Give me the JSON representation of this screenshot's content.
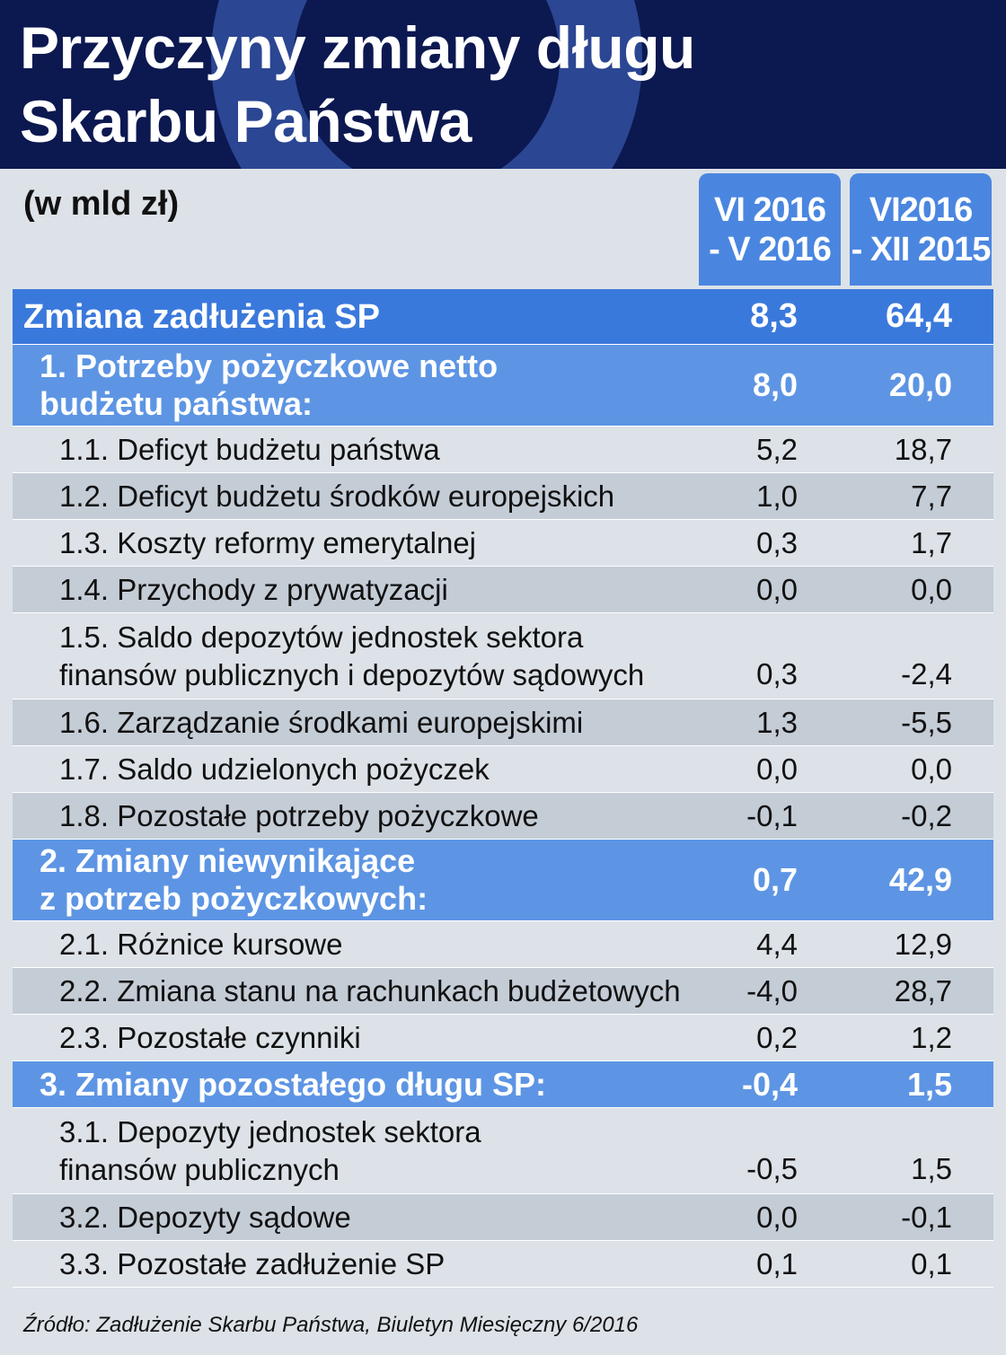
{
  "header": {
    "title_line1": "Przyczyny zmiany długu",
    "title_line2": "Skarbu Państwa"
  },
  "unit": "(w mld zł)",
  "columns": [
    {
      "line1": "VI 2016",
      "line2": "- V 2016"
    },
    {
      "line1": "VI2016",
      "line2": "- XII 2015"
    }
  ],
  "chart_data": {
    "type": "table",
    "title": "Przyczyny zmiany długu Skarbu Państwa",
    "unit": "(w mld zł)",
    "columns": [
      "VI 2016 - V 2016",
      "VI2016 - XII 2015"
    ],
    "rows": [
      {
        "label": "Zmiana zadłużenia SP",
        "level": 0,
        "values": [
          "8,3",
          "64,4"
        ]
      },
      {
        "label": "1. Potrzeby pożyczkowe netto\n    budżetu państwa:",
        "level": 1,
        "values": [
          "8,0",
          "20,0"
        ]
      },
      {
        "label": "1.1. Deficyt budżetu państwa",
        "level": 2,
        "values": [
          "5,2",
          "18,7"
        ]
      },
      {
        "label": "1.2. Deficyt budżetu środków europejskich",
        "level": 2,
        "values": [
          "1,0",
          "7,7"
        ]
      },
      {
        "label": "1.3. Koszty reformy emerytalnej",
        "level": 2,
        "values": [
          "0,3",
          "1,7"
        ]
      },
      {
        "label": "1.4. Przychody z prywatyzacji",
        "level": 2,
        "values": [
          "0,0",
          "0,0"
        ]
      },
      {
        "label": "1.5. Saldo depozytów jednostek sektora\n      finansów publicznych i depozytów sądowych",
        "level": 2,
        "values": [
          "0,3",
          "-2,4"
        ]
      },
      {
        "label": "1.6. Zarządzanie środkami europejskimi",
        "level": 2,
        "values": [
          "1,3",
          "-5,5"
        ]
      },
      {
        "label": "1.7. Saldo udzielonych pożyczek",
        "level": 2,
        "values": [
          "0,0",
          "0,0"
        ]
      },
      {
        "label": "1.8. Pozostałe potrzeby pożyczkowe",
        "level": 2,
        "values": [
          "-0,1",
          "-0,2"
        ]
      },
      {
        "label": "2. Zmiany niewynikające\n    z potrzeb pożyczkowych:",
        "level": 1,
        "values": [
          "0,7",
          "42,9"
        ]
      },
      {
        "label": "2.1. Różnice kursowe",
        "level": 2,
        "values": [
          "4,4",
          "12,9"
        ]
      },
      {
        "label": "2.2. Zmiana stanu na rachunkach budżetowych",
        "level": 2,
        "values": [
          "-4,0",
          "28,7"
        ]
      },
      {
        "label": "2.3. Pozostałe czynniki",
        "level": 2,
        "values": [
          "0,2",
          "1,2"
        ]
      },
      {
        "label": "3. Zmiany pozostałego długu SP:",
        "level": 1,
        "values": [
          "-0,4",
          "1,5"
        ]
      },
      {
        "label": "3.1. Depozyty jednostek sektora\n      finansów publicznych",
        "level": 2,
        "values": [
          "-0,5",
          "1,5"
        ]
      },
      {
        "label": "3.2. Depozyty sądowe",
        "level": 2,
        "values": [
          "0,0",
          "-0,1"
        ]
      },
      {
        "label": "3.3. Pozostałe zadłużenie SP",
        "level": 2,
        "values": [
          "0,1",
          "0,1"
        ]
      }
    ]
  },
  "source": "Źródło: Zadłużenie Skarbu Państwa, Biuletyn Miesięczny 6/2016"
}
